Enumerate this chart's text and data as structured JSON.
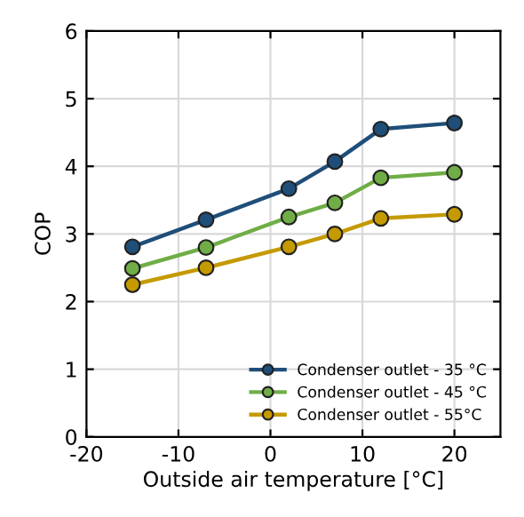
{
  "chart_data": {
    "type": "line",
    "xlabel": "Outside air temperature [°C]",
    "ylabel": "COP",
    "x": [
      -15,
      -7,
      2,
      7,
      12,
      20
    ],
    "series": [
      {
        "name": "Condenser outlet - 35 °C",
        "color": "#1f4e79",
        "values": [
          2.81,
          3.21,
          3.67,
          4.07,
          4.55,
          4.64
        ]
      },
      {
        "name": "Condenser outlet - 45 °C",
        "color": "#70ad47",
        "values": [
          2.49,
          2.8,
          3.25,
          3.46,
          3.83,
          3.91
        ]
      },
      {
        "name": "Condenser outlet - 55°C",
        "color": "#c49a00",
        "values": [
          2.25,
          2.5,
          2.81,
          3.0,
          3.23,
          3.29
        ]
      }
    ],
    "xlim": [
      -20,
      25
    ],
    "xticks": [
      -20,
      -10,
      0,
      10,
      20
    ],
    "ylim": [
      0,
      6
    ],
    "yticks": [
      0,
      1,
      2,
      3,
      4,
      5,
      6
    ],
    "grid": true,
    "legend": "bottom right",
    "marker": "circle",
    "line_style": "solid"
  }
}
